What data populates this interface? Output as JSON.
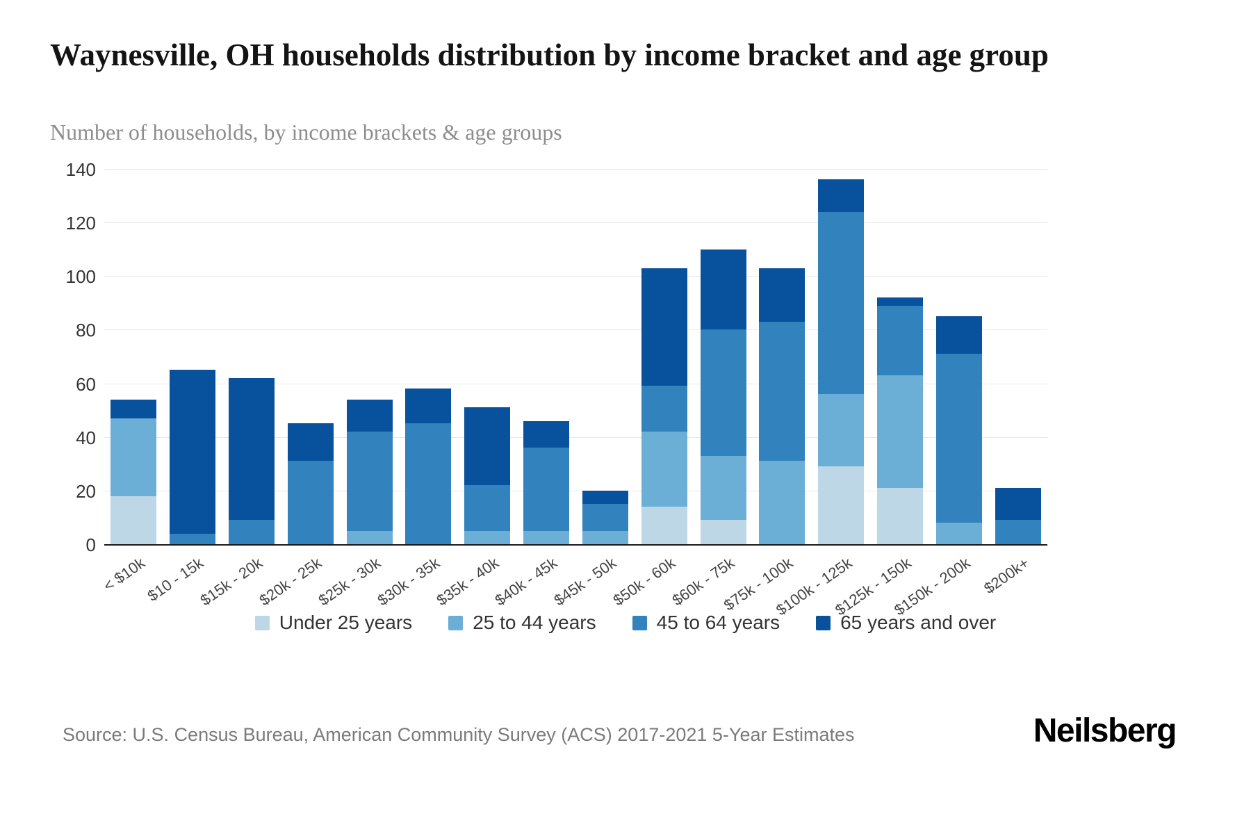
{
  "header": {
    "title": "Waynesville, OH households distribution by income bracket and age group",
    "subtitle": "Number of households, by income brackets & age groups"
  },
  "chart_data": {
    "type": "bar",
    "stacked": true,
    "title": "Waynesville, OH households distribution by income bracket and age group",
    "xlabel": "",
    "ylabel": "",
    "ylim": [
      0,
      140
    ],
    "yticks": [
      0,
      20,
      40,
      60,
      80,
      100,
      120,
      140
    ],
    "grid": true,
    "legend_position": "bottom",
    "categories": [
      "< $10k",
      "$10 - 15k",
      "$15k - 20k",
      "$20k - 25k",
      "$25k - 30k",
      "$30k - 35k",
      "$35k - 40k",
      "$40k - 45k",
      "$45k - 50k",
      "$50k - 60k",
      "$60k - 75k",
      "$75k - 100k",
      "$100k - 125k",
      "$125k - 150k",
      "$150k - 200k",
      "$200k+"
    ],
    "series": [
      {
        "name": "Under 25 years",
        "color": "#bdd7e7",
        "values": [
          18,
          0,
          0,
          0,
          0,
          0,
          0,
          0,
          0,
          14,
          9,
          0,
          29,
          21,
          0,
          0
        ]
      },
      {
        "name": "25 to 44 years",
        "color": "#6baed6",
        "values": [
          29,
          0,
          0,
          0,
          5,
          0,
          5,
          5,
          5,
          28,
          24,
          31,
          27,
          42,
          8,
          0
        ]
      },
      {
        "name": "45 to 64 years",
        "color": "#3182bd",
        "values": [
          0,
          4,
          9,
          31,
          37,
          45,
          17,
          31,
          10,
          17,
          47,
          52,
          68,
          26,
          63,
          9
        ]
      },
      {
        "name": "65 years and over",
        "color": "#08519c",
        "values": [
          7,
          61,
          53,
          14,
          12,
          13,
          29,
          10,
          5,
          44,
          30,
          20,
          12,
          3,
          14,
          12
        ]
      }
    ]
  },
  "footer": {
    "source": "Source: U.S. Census Bureau, American Community Survey (ACS) 2017-2021 5-Year Estimates",
    "brand": "Neilsberg"
  }
}
